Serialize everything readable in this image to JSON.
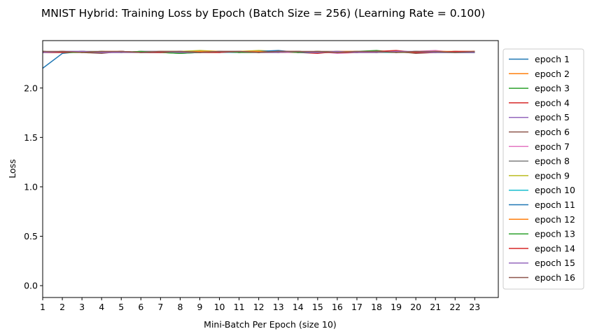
{
  "chart_data": {
    "type": "line",
    "title": "MNIST Hybrid: Training Loss by Epoch (Batch Size = 256) (Learning Rate = 0.100)",
    "xlabel": "Mini-Batch Per Epoch (size 10)",
    "ylabel": "Loss",
    "xlim": [
      1,
      24.2
    ],
    "ylim": [
      -0.12,
      2.48
    ],
    "x_ticks": [
      1,
      2,
      3,
      4,
      5,
      6,
      7,
      8,
      9,
      10,
      11,
      12,
      13,
      14,
      15,
      16,
      17,
      18,
      19,
      20,
      21,
      22,
      23
    ],
    "y_ticks": [
      0.0,
      0.5,
      1.0,
      1.5,
      2.0
    ],
    "y_tick_labels": [
      "0.0",
      "0.5",
      "1.0",
      "1.5",
      "2.0"
    ],
    "grid": false,
    "legend_position": "outside-right",
    "x": [
      1,
      2,
      3,
      4,
      5,
      6,
      7,
      8,
      9,
      10,
      11,
      12,
      13,
      14,
      15,
      16,
      17,
      18,
      19,
      20,
      21,
      22,
      23
    ],
    "series": [
      {
        "name": "epoch 1",
        "color": "#1f77b4",
        "values": [
          2.2,
          2.35,
          2.37,
          2.36,
          2.37,
          2.36,
          2.37,
          2.36,
          2.37,
          2.36,
          2.37,
          2.36,
          2.37,
          2.36,
          2.37,
          2.36,
          2.37,
          2.36,
          2.37,
          2.36,
          2.37,
          2.36,
          2.36
        ]
      },
      {
        "name": "epoch 2",
        "color": "#ff7f0e",
        "values": [
          2.36,
          2.36,
          2.36,
          2.36,
          2.37,
          2.36,
          2.37,
          2.36,
          2.36,
          2.37,
          2.36,
          2.37,
          2.36,
          2.36,
          2.37,
          2.36,
          2.36,
          2.37,
          2.36,
          2.36,
          2.37,
          2.36,
          2.37
        ]
      },
      {
        "name": "epoch 3",
        "color": "#2ca02c",
        "values": [
          2.36,
          2.37,
          2.36,
          2.36,
          2.36,
          2.37,
          2.36,
          2.35,
          2.36,
          2.36,
          2.37,
          2.36,
          2.36,
          2.37,
          2.36,
          2.36,
          2.37,
          2.38,
          2.36,
          2.36,
          2.37,
          2.36,
          2.36
        ]
      },
      {
        "name": "epoch 4",
        "color": "#d62728",
        "values": [
          2.37,
          2.36,
          2.37,
          2.36,
          2.37,
          2.36,
          2.36,
          2.37,
          2.36,
          2.36,
          2.37,
          2.36,
          2.37,
          2.36,
          2.35,
          2.37,
          2.36,
          2.36,
          2.37,
          2.36,
          2.36,
          2.37,
          2.36
        ]
      },
      {
        "name": "epoch 5",
        "color": "#9467bd",
        "values": [
          2.36,
          2.37,
          2.37,
          2.36,
          2.36,
          2.37,
          2.37,
          2.37,
          2.36,
          2.37,
          2.36,
          2.37,
          2.37,
          2.36,
          2.36,
          2.37,
          2.36,
          2.37,
          2.36,
          2.37,
          2.37,
          2.36,
          2.36
        ]
      },
      {
        "name": "epoch 6",
        "color": "#8c564b",
        "values": [
          2.36,
          2.37,
          2.36,
          2.35,
          2.37,
          2.36,
          2.36,
          2.37,
          2.36,
          2.37,
          2.36,
          2.36,
          2.37,
          2.36,
          2.37,
          2.37,
          2.36,
          2.36,
          2.37,
          2.35,
          2.36,
          2.36,
          2.37
        ]
      },
      {
        "name": "epoch 7",
        "color": "#e377c2",
        "values": [
          2.36,
          2.36,
          2.37,
          2.36,
          2.36,
          2.36,
          2.37,
          2.36,
          2.37,
          2.36,
          2.37,
          2.36,
          2.36,
          2.36,
          2.37,
          2.35,
          2.36,
          2.37,
          2.36,
          2.37,
          2.38,
          2.36,
          2.36
        ]
      },
      {
        "name": "epoch 8",
        "color": "#7f7f7f",
        "values": [
          2.37,
          2.36,
          2.37,
          2.37,
          2.36,
          2.37,
          2.37,
          2.37,
          2.36,
          2.37,
          2.37,
          2.36,
          2.37,
          2.37,
          2.36,
          2.37,
          2.37,
          2.36,
          2.37,
          2.36,
          2.36,
          2.37,
          2.36
        ]
      },
      {
        "name": "epoch 9",
        "color": "#bcbd22",
        "values": [
          2.36,
          2.37,
          2.36,
          2.37,
          2.36,
          2.36,
          2.37,
          2.37,
          2.38,
          2.37,
          2.37,
          2.38,
          2.37,
          2.36,
          2.37,
          2.36,
          2.37,
          2.36,
          2.36,
          2.37,
          2.36,
          2.36,
          2.37
        ]
      },
      {
        "name": "epoch 10",
        "color": "#17becf",
        "values": [
          2.36,
          2.36,
          2.37,
          2.36,
          2.37,
          2.36,
          2.36,
          2.36,
          2.37,
          2.36,
          2.36,
          2.37,
          2.36,
          2.37,
          2.36,
          2.36,
          2.37,
          2.36,
          2.36,
          2.37,
          2.36,
          2.37,
          2.36
        ]
      },
      {
        "name": "epoch 11",
        "color": "#1f77b4",
        "values": [
          2.37,
          2.36,
          2.37,
          2.36,
          2.37,
          2.36,
          2.36,
          2.37,
          2.36,
          2.37,
          2.36,
          2.37,
          2.38,
          2.36,
          2.36,
          2.37,
          2.36,
          2.37,
          2.37,
          2.36,
          2.36,
          2.36,
          2.36
        ]
      },
      {
        "name": "epoch 12",
        "color": "#ff7f0e",
        "values": [
          2.36,
          2.37,
          2.36,
          2.37,
          2.37,
          2.36,
          2.37,
          2.36,
          2.37,
          2.37,
          2.37,
          2.37,
          2.36,
          2.37,
          2.36,
          2.37,
          2.37,
          2.36,
          2.37,
          2.36,
          2.37,
          2.37,
          2.37
        ]
      },
      {
        "name": "epoch 13",
        "color": "#2ca02c",
        "values": [
          2.37,
          2.36,
          2.36,
          2.37,
          2.36,
          2.37,
          2.36,
          2.35,
          2.36,
          2.37,
          2.36,
          2.36,
          2.37,
          2.36,
          2.37,
          2.36,
          2.36,
          2.37,
          2.36,
          2.37,
          2.36,
          2.36,
          2.36
        ]
      },
      {
        "name": "epoch 14",
        "color": "#d62728",
        "values": [
          2.36,
          2.36,
          2.37,
          2.36,
          2.37,
          2.36,
          2.36,
          2.37,
          2.36,
          2.36,
          2.37,
          2.36,
          2.37,
          2.37,
          2.36,
          2.36,
          2.36,
          2.37,
          2.38,
          2.36,
          2.36,
          2.37,
          2.37
        ]
      },
      {
        "name": "epoch 15",
        "color": "#9467bd",
        "values": [
          2.36,
          2.37,
          2.37,
          2.36,
          2.36,
          2.36,
          2.37,
          2.36,
          2.36,
          2.37,
          2.37,
          2.36,
          2.36,
          2.37,
          2.36,
          2.37,
          2.36,
          2.36,
          2.37,
          2.37,
          2.36,
          2.36,
          2.36
        ]
      },
      {
        "name": "epoch 16",
        "color": "#8c564b",
        "values": [
          2.37,
          2.37,
          2.36,
          2.37,
          2.37,
          2.36,
          2.37,
          2.37,
          2.36,
          2.37,
          2.37,
          2.36,
          2.37,
          2.37,
          2.37,
          2.36,
          2.37,
          2.37,
          2.36,
          2.37,
          2.37,
          2.36,
          2.37
        ]
      }
    ]
  }
}
